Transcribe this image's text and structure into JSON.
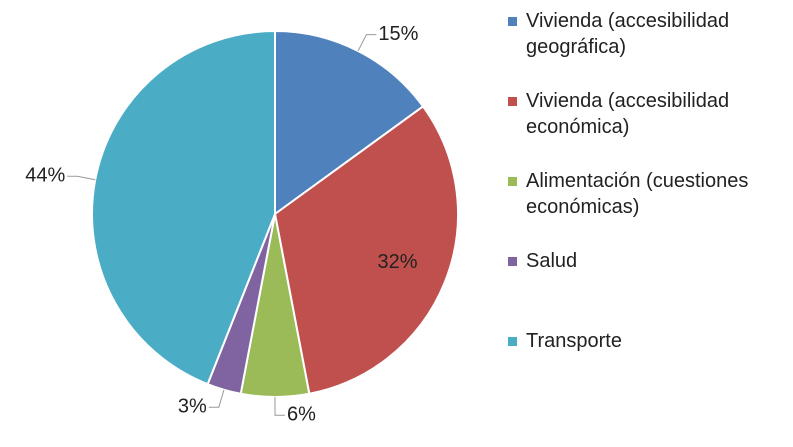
{
  "chart_data": {
    "type": "pie",
    "categories": [
      "Vivienda (accesibilidad geográfica)",
      "Vivienda (accesibilidad económica)",
      "Alimentación (cuestiones económicas)",
      "Salud",
      "Transporte"
    ],
    "values": [
      15,
      32,
      6,
      3,
      44
    ],
    "value_labels": [
      "15%",
      "32%",
      "6%",
      "3%",
      "44%"
    ],
    "colors": [
      "#4f81bd",
      "#c0504d",
      "#9bbb59",
      "#8064a2",
      "#4bacc6"
    ],
    "legend": "right"
  }
}
